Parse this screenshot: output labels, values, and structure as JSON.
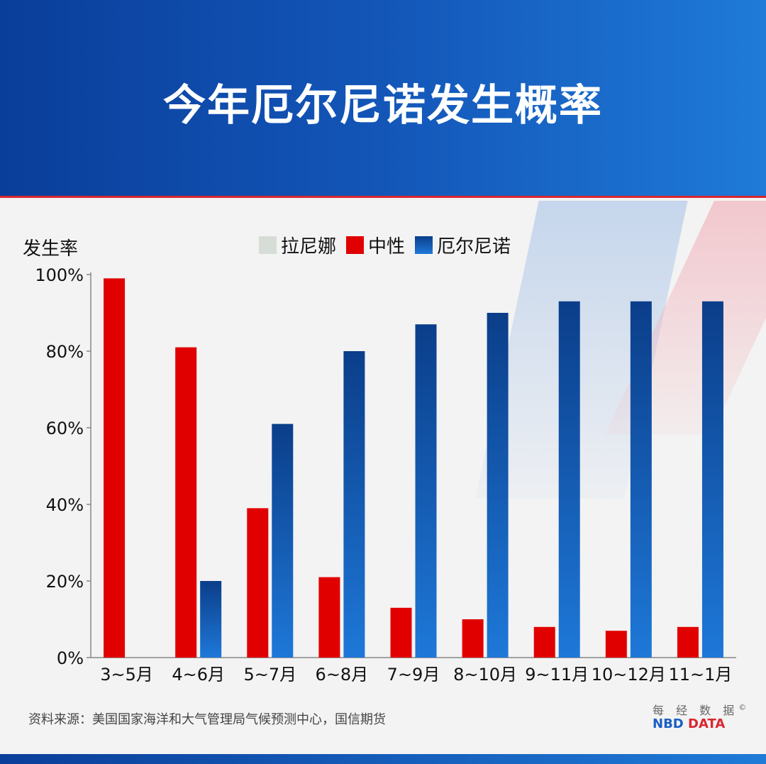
{
  "title": "今年厄尔尼诺发生概率",
  "colors": {
    "la_nina": "#d6ddd6",
    "neutral": "#e00000",
    "el_nino_top": "#0b3e8a",
    "el_nino_bottom": "#1e78d8"
  },
  "legend": [
    {
      "label": "拉尼娜",
      "color_key": "la_nina"
    },
    {
      "label": "中性",
      "color_key": "neutral"
    },
    {
      "label": "厄尔尼诺",
      "color_key": "el_nino"
    }
  ],
  "source": "资料来源：美国国家海洋和大气管理局气候预测中心，国信期货",
  "brand": {
    "cn": "每 经 数 据",
    "copyright": "©",
    "nbd": "NBD",
    "data": "DATA"
  },
  "chart_data": {
    "type": "bar",
    "title": "今年厄尔尼诺发生概率",
    "ylabel": "发生率",
    "ylim": [
      0,
      100
    ],
    "yticks": [
      "0%",
      "20%",
      "40%",
      "60%",
      "80%",
      "100%"
    ],
    "legend_position": "top",
    "categories": [
      "3~5月",
      "4~6月",
      "5~7月",
      "6~8月",
      "7~9月",
      "8~10月",
      "9~11月",
      "10~12月",
      "11~1月"
    ],
    "series": [
      {
        "name": "拉尼娜",
        "values": [
          2,
          0,
          0,
          0,
          0,
          0,
          0,
          0,
          0
        ]
      },
      {
        "name": "中性",
        "values": [
          99,
          81,
          39,
          21,
          13,
          10,
          8,
          7,
          8
        ]
      },
      {
        "name": "厄尔尼诺",
        "values": [
          0,
          20,
          61,
          80,
          87,
          90,
          93,
          93,
          93
        ]
      }
    ]
  }
}
